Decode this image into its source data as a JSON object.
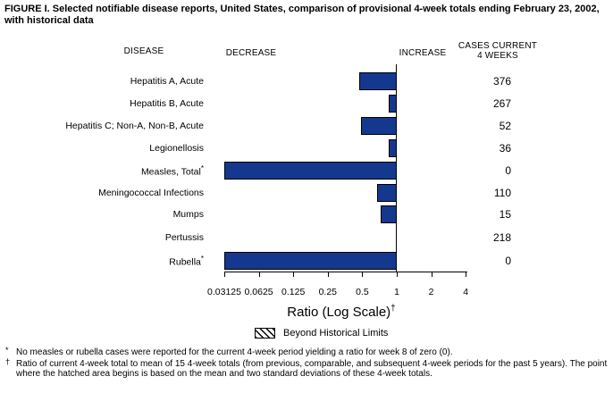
{
  "title": "FIGURE I. Selected notifiable disease reports, United States, comparison of provisional 4-week totals ending February 23, 2002, with historical data",
  "columns": {
    "disease": "DISEASE",
    "decrease": "DECREASE",
    "increase": "INCREASE",
    "cases_line1": "CASES CURRENT",
    "cases_line2": "4 WEEKS"
  },
  "chart_data": {
    "type": "bar",
    "orientation": "horizontal",
    "scale": "log2",
    "baseline": 1,
    "xlim": [
      0.03125,
      4
    ],
    "tick_labels": [
      "0.03125",
      "0.0625",
      "0.125",
      "0.25",
      "0.5",
      "1",
      "2",
      "4"
    ],
    "xlabel": "Ratio (Log Scale)",
    "xlabel_marker": "†",
    "bar_color": "#15388f",
    "rows": [
      {
        "disease": "Hepatitis A, Acute",
        "flag": "",
        "ratio": 0.47,
        "cases": "376",
        "off_scale_low": false
      },
      {
        "disease": "Hepatitis B, Acute",
        "flag": "",
        "ratio": 0.85,
        "cases": "267",
        "off_scale_low": false
      },
      {
        "disease": "Hepatitis C; Non-A, Non-B, Acute",
        "flag": "",
        "ratio": 0.49,
        "cases": "52",
        "off_scale_low": false
      },
      {
        "disease": "Legionellosis",
        "flag": "",
        "ratio": 0.85,
        "cases": "36",
        "off_scale_low": false
      },
      {
        "disease": "Measles, Total",
        "flag": "*",
        "ratio": 0,
        "cases": "0",
        "off_scale_low": true
      },
      {
        "disease": "Meningococcal Infections",
        "flag": "",
        "ratio": 0.67,
        "cases": "110",
        "off_scale_low": false
      },
      {
        "disease": "Mumps",
        "flag": "",
        "ratio": 0.72,
        "cases": "15",
        "off_scale_low": false
      },
      {
        "disease": "Pertussis",
        "flag": "",
        "ratio": 1.0,
        "cases": "218",
        "off_scale_low": false
      },
      {
        "disease": "Rubella",
        "flag": "*",
        "ratio": 0,
        "cases": "0",
        "off_scale_low": true
      }
    ],
    "legend": {
      "swatch": "hatched",
      "label": "Beyond Historical Limits"
    }
  },
  "footnotes": [
    {
      "marker": "*",
      "text": "No measles or rubella cases were reported for the current 4-week period yielding a ratio for week 8 of zero (0)."
    },
    {
      "marker": "†",
      "text": "Ratio of current 4-week total to mean of 15 4-week totals (from previous, comparable, and subsequent 4-week periods for the past 5 years). The point where the hatched area begins is based on the mean and two standard deviations of these 4-week totals."
    }
  ]
}
